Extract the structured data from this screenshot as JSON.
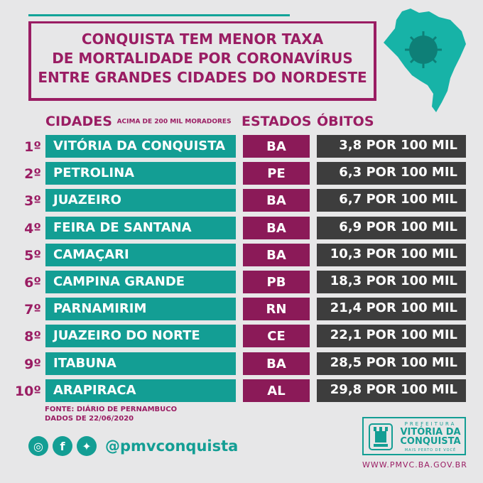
{
  "title": {
    "line1": "CONQUISTA TEM MENOR TAXA",
    "line2": "DE MORTALIDADE POR CORONAVÍRUS",
    "line3": "ENTRE GRANDES CIDADES DO NORDESTE"
  },
  "headers": {
    "cities": "CIDADES",
    "cities_note": "ACIMA DE 200 MIL MORADORES",
    "states": "ESTADOS",
    "deaths": "ÓBITOS"
  },
  "rows": [
    {
      "rank": "1º",
      "city": "VITÓRIA DA CONQUISTA",
      "state": "BA",
      "deaths": "3,8 POR 100 MIL"
    },
    {
      "rank": "2º",
      "city": "PETROLINA",
      "state": "PE",
      "deaths": "6,3 POR 100 MIL"
    },
    {
      "rank": "3º",
      "city": "JUAZEIRO",
      "state": "BA",
      "deaths": "6,7 POR 100 MIL"
    },
    {
      "rank": "4º",
      "city": "FEIRA DE SANTANA",
      "state": "BA",
      "deaths": "6,9 POR 100 MIL"
    },
    {
      "rank": "5º",
      "city": "CAMAÇARI",
      "state": "BA",
      "deaths": "10,3 POR 100 MIL"
    },
    {
      "rank": "6º",
      "city": "CAMPINA GRANDE",
      "state": "PB",
      "deaths": "18,3 POR 100 MIL"
    },
    {
      "rank": "7º",
      "city": "PARNAMIRIM",
      "state": "RN",
      "deaths": "21,4 POR 100 MIL"
    },
    {
      "rank": "8º",
      "city": "JUAZEIRO DO NORTE",
      "state": "CE",
      "deaths": "22,1 POR 100 MIL"
    },
    {
      "rank": "9º",
      "city": "ITABUNA",
      "state": "BA",
      "deaths": "28,5 POR 100 MIL"
    },
    {
      "rank": "10º",
      "city": "ARAPIRACA",
      "state": "AL",
      "deaths": "29,8 POR 100 MIL"
    }
  ],
  "source": {
    "line1": "FONTE: DIÁRIO DE PERNAMBUCO",
    "line2": "DADOS DE 22/06/2020"
  },
  "social": {
    "icons": [
      "instagram-icon",
      "facebook-icon",
      "twitter-icon"
    ],
    "handle": "@pmvconquista"
  },
  "logo": {
    "prefeitura": "PREFEITURA",
    "line1": "VITÓRIA DA",
    "line2": "CONQUISTA",
    "tagline": "MAIS PERTO DE VOCÊ"
  },
  "url": "WWW.PMVC.BA.GOV.BR",
  "colors": {
    "teal": "#139e94",
    "magenta": "#9a1d63",
    "dark": "#3d3d3d",
    "background": "#e7e7e8"
  }
}
